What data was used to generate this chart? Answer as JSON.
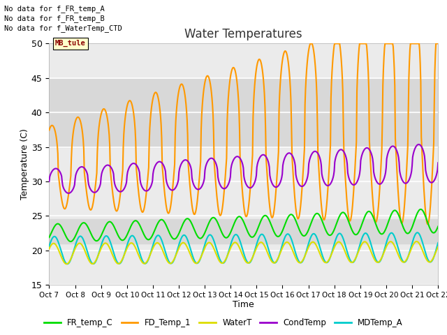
{
  "title": "Water Temperatures",
  "xlabel": "Time",
  "ylabel": "Temperature (C)",
  "ylim": [
    15,
    50
  ],
  "xlim": [
    0,
    15
  ],
  "annotation_text": "No data for f_FR_temp_A\nNo data for f_FR_temp_B\nNo data for f_WaterTemp_CTD",
  "mb_tule_label": "MB_tule",
  "x_tick_labels": [
    "Oct 7",
    "Oct 8",
    "Oct 9",
    "Oct 10",
    "Oct 11",
    "Oct 12",
    "Oct 13",
    "Oct 14",
    "Oct 15",
    "Oct 16",
    "Oct 17",
    "Oct 18",
    "Oct 19",
    "Oct 20",
    "Oct 21",
    "Oct 22"
  ],
  "background_color": "#ffffff",
  "plot_bg_color": "#ebebeb",
  "band1_color": "#d8d8d8",
  "band2_color": "#d8d8d8",
  "band1": [
    21.0,
    24.5
  ],
  "band2": [
    35.0,
    45.0
  ],
  "yticks": [
    15,
    20,
    25,
    30,
    35,
    40,
    45,
    50
  ],
  "series": {
    "FR_temp_C": {
      "color": "#00dd00",
      "lw": 1.5
    },
    "FD_Temp_1": {
      "color": "#ff9900",
      "lw": 1.5
    },
    "WaterT": {
      "color": "#dddd00",
      "lw": 1.5
    },
    "CondTemp": {
      "color": "#9900cc",
      "lw": 1.5
    },
    "MDTemp_A": {
      "color": "#00cccc",
      "lw": 1.5
    }
  }
}
